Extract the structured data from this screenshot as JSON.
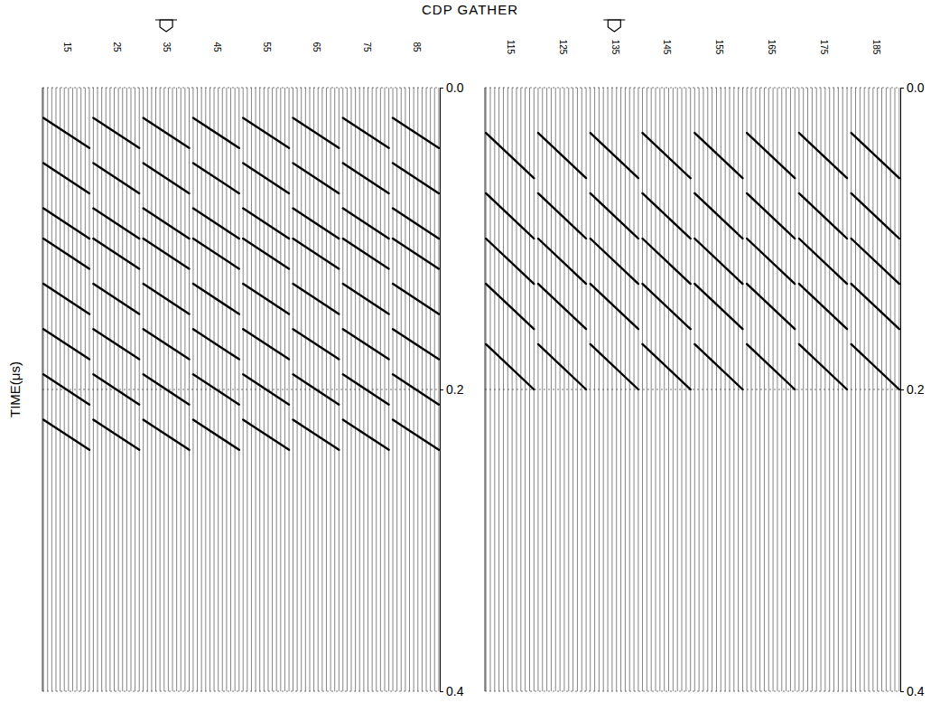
{
  "chart_data": {
    "type": "wiggle",
    "title": "CDP GATHER",
    "y_label": "TIME(μs)",
    "ylim": [
      0,
      0.4
    ],
    "yticks": [
      {
        "value": 0,
        "label": "0.0"
      },
      {
        "value": 0.2,
        "label": "0.2"
      },
      {
        "value": 0.4,
        "label": "0.4"
      }
    ],
    "grid": true,
    "panels": [
      {
        "categories": [
          "15",
          "25",
          "35",
          "45",
          "55",
          "65",
          "75",
          "85"
        ],
        "source_gather": "35",
        "events": [
          {
            "t0": 0.02,
            "t1": 0.04
          },
          {
            "t0": 0.05,
            "t1": 0.07
          },
          {
            "t0": 0.08,
            "t1": 0.1
          },
          {
            "t0": 0.1,
            "t1": 0.12
          },
          {
            "t0": 0.13,
            "t1": 0.15
          },
          {
            "t0": 0.16,
            "t1": 0.18
          },
          {
            "t0": 0.19,
            "t1": 0.21
          },
          {
            "t0": 0.22,
            "t1": 0.24
          }
        ]
      },
      {
        "categories": [
          "115",
          "125",
          "135",
          "145",
          "155",
          "165",
          "175",
          "185"
        ],
        "source_gather": "135",
        "events": [
          {
            "t0": 0.03,
            "t1": 0.06
          },
          {
            "t0": 0.07,
            "t1": 0.1
          },
          {
            "t0": 0.1,
            "t1": 0.13
          },
          {
            "t0": 0.13,
            "t1": 0.16
          },
          {
            "t0": 0.17,
            "t1": 0.2
          }
        ]
      }
    ]
  }
}
